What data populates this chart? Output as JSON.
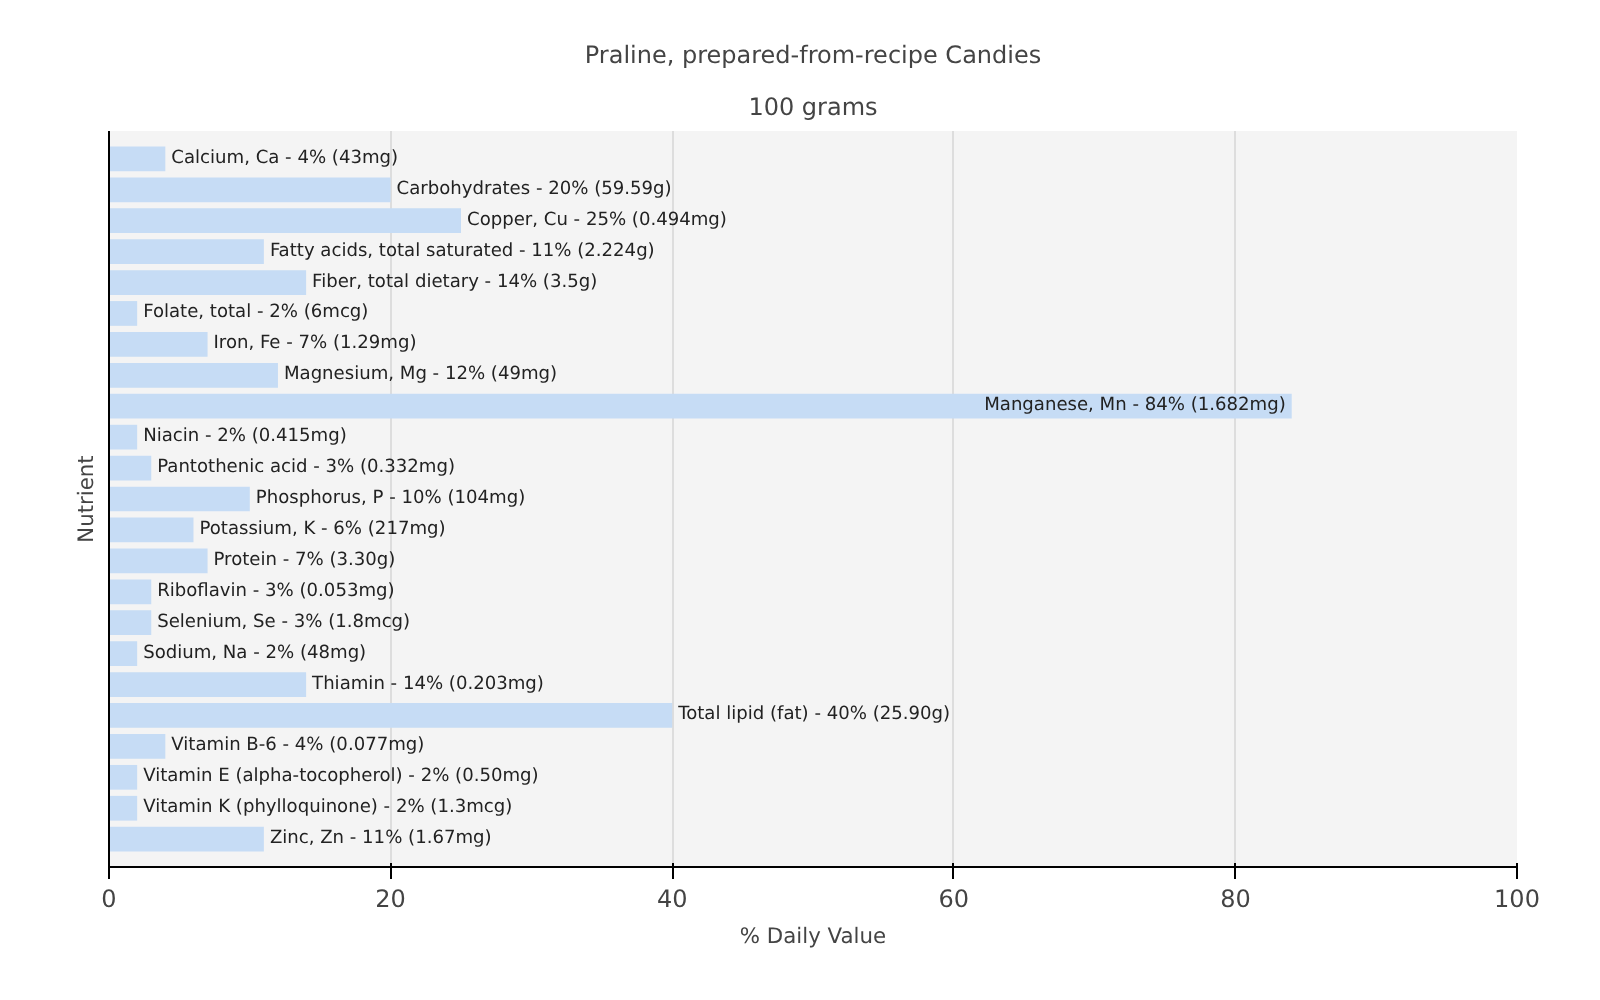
{
  "chart_data": {
    "type": "bar",
    "orientation": "horizontal",
    "title": "Praline, prepared-from-recipe Candies",
    "subtitle": "100 grams",
    "xlabel": "% Daily Value",
    "ylabel": "Nutrient",
    "categories": [
      "Calcium, Ca - 4% (43mg)",
      "Carbohydrates - 20% (59.59g)",
      "Copper, Cu - 25% (0.494mg)",
      "Fatty acids, total saturated - 11% (2.224g)",
      "Fiber, total dietary - 14% (3.5g)",
      "Folate, total - 2% (6mcg)",
      "Iron, Fe - 7% (1.29mg)",
      "Magnesium, Mg - 12% (49mg)",
      "Manganese, Mn - 84% (1.682mg)",
      "Niacin - 2% (0.415mg)",
      "Pantothenic acid - 3% (0.332mg)",
      "Phosphorus, P - 10% (104mg)",
      "Potassium, K - 6% (217mg)",
      "Protein - 7% (3.30g)",
      "Riboflavin - 3% (0.053mg)",
      "Selenium, Se - 3% (1.8mcg)",
      "Sodium, Na - 2% (48mg)",
      "Thiamin - 14% (0.203mg)",
      "Total lipid (fat) - 40% (25.90g)",
      "Vitamin B-6 - 4% (0.077mg)",
      "Vitamin E (alpha-tocopherol) - 2% (0.50mg)",
      "Vitamin K (phylloquinone) - 2% (1.3mcg)",
      "Zinc, Zn - 11% (1.67mg)"
    ],
    "values": [
      4,
      20,
      25,
      11,
      14,
      2,
      7,
      12,
      84,
      2,
      3,
      10,
      6,
      7,
      3,
      3,
      2,
      14,
      40,
      4,
      2,
      2,
      11
    ],
    "color": "#c6dcf5",
    "xlim": [
      0,
      100
    ],
    "xticks": [
      0,
      20,
      40,
      60,
      80,
      100
    ],
    "grid": "x",
    "tick_labels": "x"
  }
}
